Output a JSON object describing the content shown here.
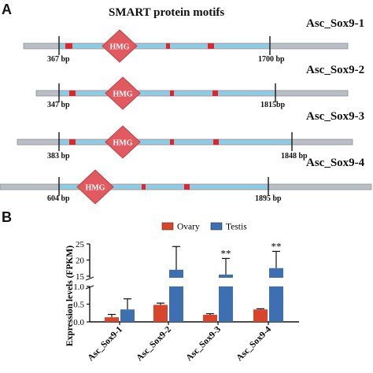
{
  "panel_a": {
    "letter": "A",
    "title": "SMART protein motifs",
    "genes": [
      {
        "name": "Asc_Sox9-1",
        "start_label": "367 bp",
        "end_label": "1700 bp",
        "domain_label": "HMG"
      },
      {
        "name": "Asc_Sox9-2",
        "start_label": "347 bp",
        "end_label": "1815bp",
        "domain_label": "HMG"
      },
      {
        "name": "Asc_Sox9-3",
        "start_label": "383 bp",
        "end_label": "1848 bp",
        "domain_label": "HMG"
      },
      {
        "name": "Asc_Sox9-4",
        "start_label": "604 bp",
        "end_label": "1895 bp",
        "domain_label": "HMG"
      }
    ],
    "colors": {
      "backbone": "#b9bec4",
      "coding": "#7fd0ee",
      "domain": "#e05a60",
      "motif": "#e0242b"
    }
  },
  "panel_b": {
    "letter": "B",
    "chart_data": {
      "type": "bar",
      "categories": [
        "Asc_Sox9-1",
        "Asc_Sox9-2",
        "Asc_Sox9-3",
        "Asc_Sox9-4"
      ],
      "series": [
        {
          "name": "Ovary",
          "color": "#d9452b",
          "values": [
            0.13,
            0.48,
            0.2,
            0.35
          ],
          "errors": [
            0.08,
            0.05,
            0.03,
            0.02
          ]
        },
        {
          "name": "Testis",
          "color": "#3e6fb0",
          "values": [
            0.35,
            17,
            15.5,
            17.5
          ],
          "errors": [
            0.3,
            7.2,
            5,
            5.2
          ]
        }
      ],
      "ylabel": "Expression levels (FPKM)",
      "xlabel": "",
      "y_axis_break": true,
      "y_lower_ticks": [
        "0.0",
        "0.5",
        "1.0"
      ],
      "y_upper_ticks": [
        "15",
        "20",
        "25"
      ],
      "significance": [
        {
          "category": "Asc_Sox9-3",
          "label": "**"
        },
        {
          "category": "Asc_Sox9-4",
          "label": "**"
        }
      ],
      "legend": {
        "placement": "top"
      }
    }
  }
}
